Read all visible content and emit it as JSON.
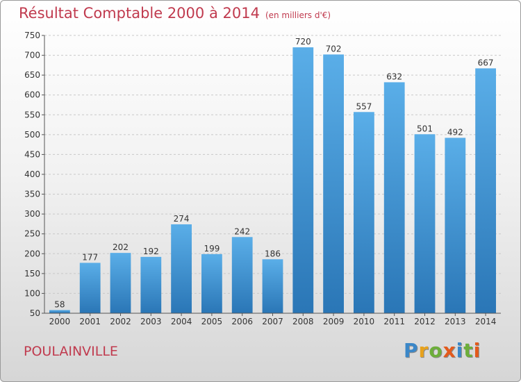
{
  "title": "Résultat Comptable 2000 à 2014",
  "subtitle": "(en milliers d'€)",
  "commune": "POULAINVILLE",
  "logo": {
    "letters": [
      "P",
      "r",
      "o",
      "x",
      "i",
      "t",
      "i"
    ],
    "colors": [
      "#3b87c8",
      "#e8a21c",
      "#6dae3b",
      "#e35a1c",
      "#3b87c8",
      "#6dae3b",
      "#e35a1c"
    ]
  },
  "colors": {
    "title": "#c03a4e",
    "bar_top": "#5aaee8",
    "bar_bottom": "#2a76b6",
    "axis": "#555555",
    "grid": "#c8c8c8"
  },
  "chart_data": {
    "type": "bar",
    "categories": [
      "2000",
      "2001",
      "2002",
      "2003",
      "2004",
      "2005",
      "2006",
      "2007",
      "2008",
      "2009",
      "2010",
      "2011",
      "2012",
      "2013",
      "2014"
    ],
    "values": [
      58,
      177,
      202,
      192,
      274,
      199,
      242,
      186,
      720,
      702,
      557,
      632,
      501,
      492,
      667
    ],
    "ylim": [
      50,
      750
    ],
    "yticks": [
      50,
      100,
      150,
      200,
      250,
      300,
      350,
      400,
      450,
      500,
      550,
      600,
      650,
      700,
      750
    ],
    "grid": true,
    "xlabel": "",
    "ylabel": ""
  }
}
